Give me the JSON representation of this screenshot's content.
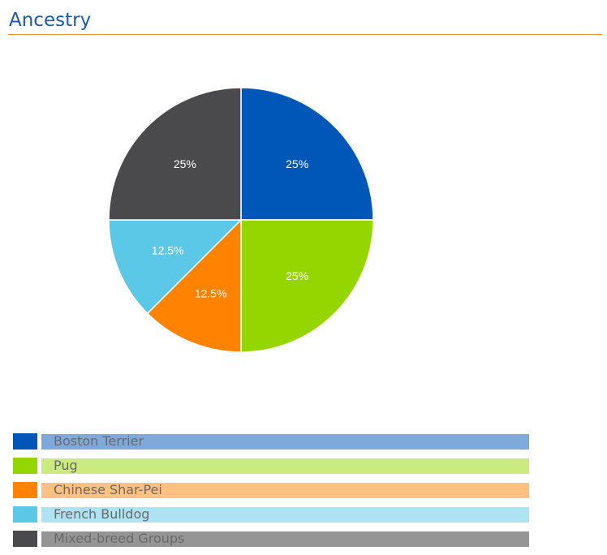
{
  "page": {
    "title": "Ancestry"
  },
  "chart_data": {
    "type": "pie",
    "title": "",
    "slices": [
      {
        "label": "Boston Terrier",
        "value": 25,
        "display": "25%",
        "color": "#0057b8",
        "legend_bg": "#7fa9db"
      },
      {
        "label": "Pug",
        "value": 25,
        "display": "25%",
        "color": "#95d600",
        "legend_bg": "#cbea7f"
      },
      {
        "label": "Chinese Shar-Pei",
        "value": 12.5,
        "display": "12.5%",
        "color": "#ff8200",
        "legend_bg": "#ffc080"
      },
      {
        "label": "French Bulldog",
        "value": 12.5,
        "display": "12.5%",
        "color": "#5bc8e8",
        "legend_bg": "#ade3f3"
      },
      {
        "label": "Mixed-breed Groups",
        "value": 25,
        "display": "25%",
        "color": "#4a4a4c",
        "legend_bg": "#959596"
      }
    ],
    "legend": {
      "position": "bottom",
      "items": [
        "Boston Terrier",
        "Pug",
        "Chinese Shar-Pei",
        "French Bulldog",
        "Mixed-breed Groups"
      ]
    }
  }
}
